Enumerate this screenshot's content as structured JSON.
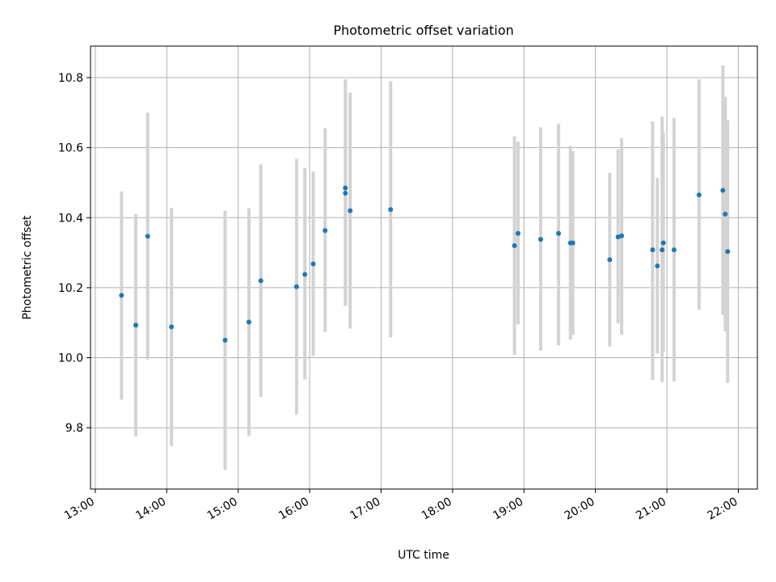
{
  "chart_data": {
    "type": "scatter",
    "title": "Photometric offset variation",
    "xlabel": "UTC time",
    "ylabel": "Photometric offset",
    "x_ticks": [
      "13:00",
      "14:00",
      "15:00",
      "16:00",
      "17:00",
      "18:00",
      "19:00",
      "20:00",
      "21:00",
      "22:00"
    ],
    "y_ticks": [
      "9.8",
      "10.0",
      "10.2",
      "10.4",
      "10.6",
      "10.8"
    ],
    "xlim": [
      "12:56",
      "22:16"
    ],
    "ylim": [
      9.625,
      10.89
    ],
    "grid": true,
    "colors": {
      "point": "#1f77b4",
      "errorbar": "#d3d3d3",
      "grid": "#b0b0b0"
    },
    "points": [
      {
        "x": "13:22",
        "y": 10.178,
        "err_low": 9.88,
        "err_high": 10.475
      },
      {
        "x": "13:34",
        "y": 10.093,
        "err_low": 9.775,
        "err_high": 10.41
      },
      {
        "x": "13:44",
        "y": 10.347,
        "err_low": 9.995,
        "err_high": 10.7
      },
      {
        "x": "14:04",
        "y": 10.088,
        "err_low": 9.748,
        "err_high": 10.428
      },
      {
        "x": "14:49",
        "y": 10.05,
        "err_low": 9.68,
        "err_high": 10.42
      },
      {
        "x": "15:09",
        "y": 10.102,
        "err_low": 9.777,
        "err_high": 10.427
      },
      {
        "x": "15:19",
        "y": 10.22,
        "err_low": 9.888,
        "err_high": 10.552
      },
      {
        "x": "15:49",
        "y": 10.203,
        "err_low": 9.838,
        "err_high": 10.568
      },
      {
        "x": "15:56",
        "y": 10.238,
        "err_low": 9.938,
        "err_high": 10.542
      },
      {
        "x": "16:03",
        "y": 10.268,
        "err_low": 10.005,
        "err_high": 10.532
      },
      {
        "x": "16:13",
        "y": 10.363,
        "err_low": 10.073,
        "err_high": 10.655
      },
      {
        "x": "16:30",
        "y": 10.47,
        "err_low": 10.148,
        "err_high": 10.795
      },
      {
        "x": "16:30",
        "y": 10.485,
        "err_low": 10.148,
        "err_high": 10.795
      },
      {
        "x": "16:34",
        "y": 10.42,
        "err_low": 10.083,
        "err_high": 10.757
      },
      {
        "x": "17:08",
        "y": 10.423,
        "err_low": 10.058,
        "err_high": 10.79
      },
      {
        "x": "18:52",
        "y": 10.32,
        "err_low": 10.008,
        "err_high": 10.633
      },
      {
        "x": "18:55",
        "y": 10.355,
        "err_low": 10.095,
        "err_high": 10.617
      },
      {
        "x": "19:14",
        "y": 10.338,
        "err_low": 10.02,
        "err_high": 10.658
      },
      {
        "x": "19:29",
        "y": 10.355,
        "err_low": 10.035,
        "err_high": 10.668
      },
      {
        "x": "19:39",
        "y": 10.328,
        "err_low": 10.052,
        "err_high": 10.605
      },
      {
        "x": "19:41",
        "y": 10.328,
        "err_low": 10.065,
        "err_high": 10.59
      },
      {
        "x": "20:12",
        "y": 10.28,
        "err_low": 10.032,
        "err_high": 10.528
      },
      {
        "x": "20:19",
        "y": 10.345,
        "err_low": 10.097,
        "err_high": 10.595
      },
      {
        "x": "20:22",
        "y": 10.348,
        "err_low": 10.065,
        "err_high": 10.627
      },
      {
        "x": "20:48",
        "y": 10.308,
        "err_low": 9.937,
        "err_high": 10.675
      },
      {
        "x": "20:52",
        "y": 10.262,
        "err_low": 10.012,
        "err_high": 10.513
      },
      {
        "x": "20:56",
        "y": 10.308,
        "err_low": 9.93,
        "err_high": 10.688
      },
      {
        "x": "20:57",
        "y": 10.328,
        "err_low": 10.018,
        "err_high": 10.642
      },
      {
        "x": "21:06",
        "y": 10.308,
        "err_low": 9.932,
        "err_high": 10.685
      },
      {
        "x": "21:27",
        "y": 10.465,
        "err_low": 10.137,
        "err_high": 10.795
      },
      {
        "x": "21:47",
        "y": 10.478,
        "err_low": 10.122,
        "err_high": 10.835
      },
      {
        "x": "21:49",
        "y": 10.41,
        "err_low": 10.075,
        "err_high": 10.745
      },
      {
        "x": "21:51",
        "y": 10.303,
        "err_low": 9.928,
        "err_high": 10.678
      }
    ]
  }
}
